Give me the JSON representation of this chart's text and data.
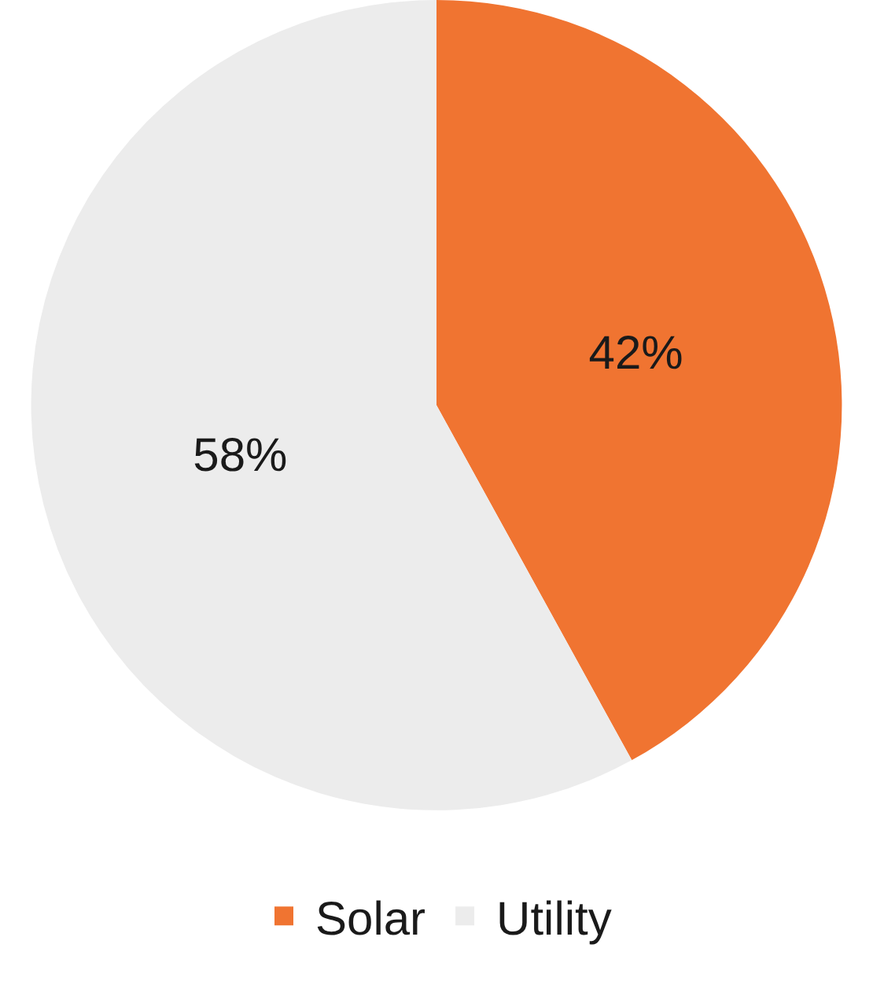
{
  "chart_data": {
    "type": "pie",
    "categories": [
      "Solar",
      "Utility"
    ],
    "values": [
      42,
      58
    ],
    "colors": [
      "#f07431",
      "#ececec"
    ],
    "value_labels": [
      "42%",
      "58%"
    ],
    "legend": "bottom"
  }
}
